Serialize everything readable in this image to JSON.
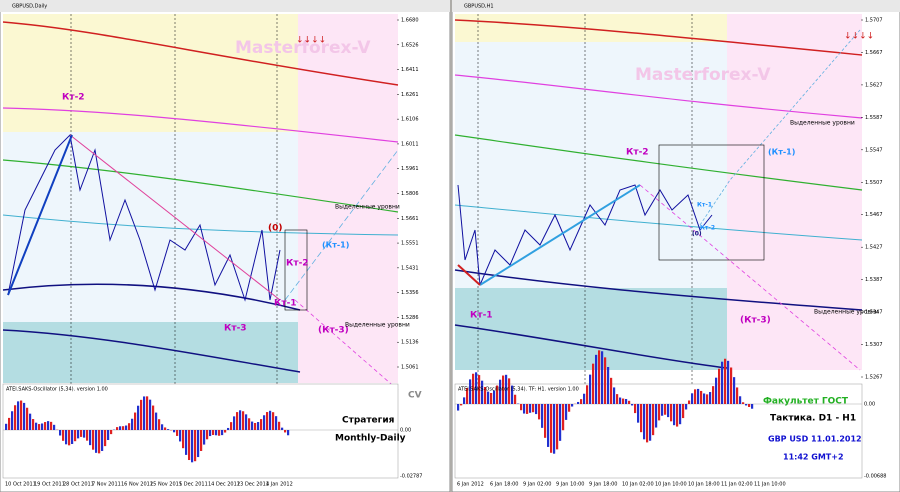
{
  "left": {
    "title": "GBPUSD,Daily",
    "watermark": "Masterforex-V",
    "arrows": "↓↓↓↓",
    "labels": [
      "Кт-2",
      "Кт-3",
      "Кт-2",
      "Кт-1",
      "(Кт-1)",
      "(Кт-3)",
      "(0)"
    ],
    "levels_note": [
      "Выделенные уровни",
      "Выделенные уровни"
    ],
    "price_labels": [
      "1.6680",
      "1.6526",
      "1.6411",
      "1.6261",
      "1.6106",
      "1.6011",
      "1.5961",
      "1.5806",
      "1.5661",
      "1.5551",
      "1.5431",
      "1.5356",
      "1.5286",
      "1.5136",
      "1.5061"
    ],
    "dates": [
      "10 Oct 2011",
      "19 Oct 2011",
      "28 Oct 2011",
      "7 Nov 2011",
      "16 Nov 2011",
      "25 Nov 2011",
      "5 Dec 2011",
      "14 Dec 2011",
      "23 Dec 2011",
      "4 Jan 2012"
    ],
    "oscillator": {
      "label": "ATEI.SAKS-Oscillator (5,34). version 1.00",
      "zero": "0.00",
      "min": "-0.02787",
      "badge": "CV"
    },
    "caption": [
      "Стратегия",
      "Monthly-Daily"
    ]
  },
  "right": {
    "title": "GBPUSD,H1",
    "watermark": "Masterforex-V",
    "arrows": "↓↓↓↓",
    "labels": [
      "Кт-2",
      "Кт-1",
      "(Кт-1)",
      "(Кт-3)",
      "Кт-1",
      "Кт-2",
      "(0)"
    ],
    "levels_note": [
      "Выделенные уровни",
      "Выделенные уровни"
    ],
    "price_labels": [
      "1.5707",
      "1.5667",
      "1.5627",
      "1.5587",
      "1.5547",
      "1.5507",
      "1.5467",
      "1.5427",
      "1.5387",
      "1.5347",
      "1.5307",
      "1.5267"
    ],
    "dates": [
      "6 Jan 2012",
      "6 Jan 18:00",
      "9 Jan 02:00",
      "9 Jan 10:00",
      "9 Jan 18:00",
      "10 Jan 02:00",
      "10 Jan 10:00",
      "10 Jan 18:00",
      "11 Jan 02:00",
      "11 Jan 10:00"
    ],
    "oscillator": {
      "label": "ATEI.SAKS-Oscillator (5,34). TF: H1. version 1.00",
      "zero": "0.00",
      "min": "-0.00688"
    },
    "caption": [
      "Факультет ГОСТ",
      "Тактика. D1 - H1",
      "GBP USD 11.01.2012",
      "11:42 GMT+2"
    ]
  }
}
